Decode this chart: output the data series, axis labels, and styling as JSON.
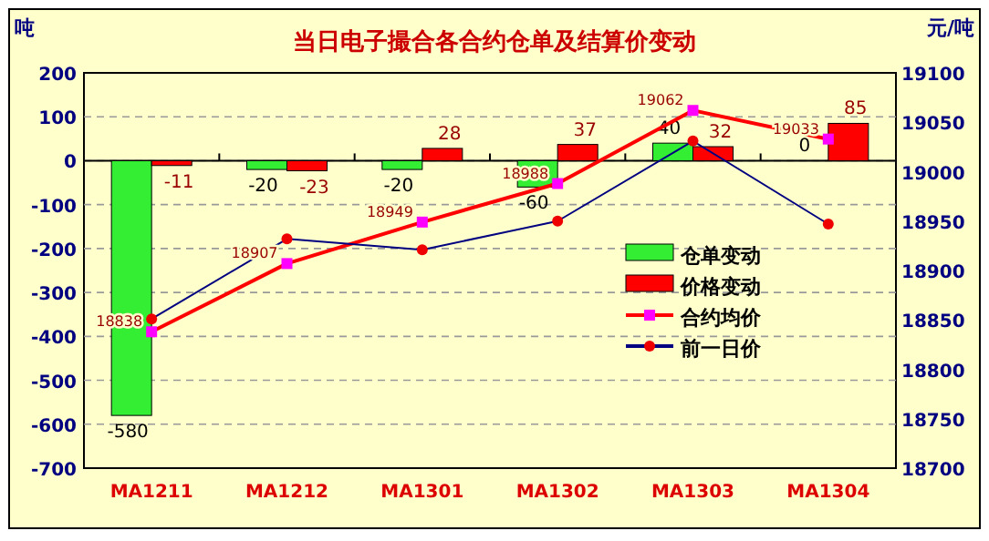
{
  "chart_data": {
    "type": "bar",
    "title": "当日电子撮合各合约仓单及结算价变动",
    "ylabel": "吨",
    "y2label": "元/吨",
    "categories": [
      "MA1211",
      "MA1212",
      "MA1301",
      "MA1302",
      "MA1303",
      "MA1304"
    ],
    "series": [
      {
        "name": "仓单变动",
        "color": "#33ee33",
        "values": [
          -580,
          -20,
          -20,
          -60,
          40,
          0
        ],
        "value_labels": [
          "-580",
          "-20",
          "-20",
          "-60",
          "40",
          "0"
        ]
      },
      {
        "name": "价格变动",
        "color": "#ff0000",
        "values": [
          -11,
          -23,
          28,
          37,
          32,
          85
        ],
        "value_labels": [
          "-11",
          "-23",
          "28",
          "37",
          "32",
          "85"
        ]
      },
      {
        "name": "合约均价",
        "type": "line",
        "axis": "y2",
        "color": "#ff0000",
        "colors": [
          "#ff00ff",
          "#ff00ff",
          "#ff00ff",
          "#ff00ff",
          "#ff00ff",
          "#ff00ff"
        ],
        "marker": "square",
        "values": [
          18838,
          18907,
          18949,
          18988,
          19062,
          19033
        ],
        "value_labels": [
          "18838",
          "18907",
          "18949",
          "18988",
          "19062",
          "19033"
        ]
      },
      {
        "name": "前一日价",
        "type": "line",
        "axis": "y2",
        "color": "#000080",
        "colors": [
          "#ee0000",
          "#ee0000",
          "#ee0000",
          "#ee0000",
          "#ee0000",
          "#ee0000"
        ],
        "marker": "circle",
        "values": [
          18851,
          18932,
          18921,
          18950,
          19031,
          18947
        ]
      }
    ],
    "ylim": [
      -700,
      200
    ],
    "yticks": [
      -700,
      -600,
      -500,
      -400,
      -300,
      -200,
      -100,
      0,
      100,
      200
    ],
    "y2lim": [
      18700,
      19100
    ],
    "y2ticks": [
      18700,
      18750,
      18800,
      18850,
      18900,
      18950,
      19000,
      19050,
      19100
    ],
    "grid": "y",
    "legend": "right"
  }
}
